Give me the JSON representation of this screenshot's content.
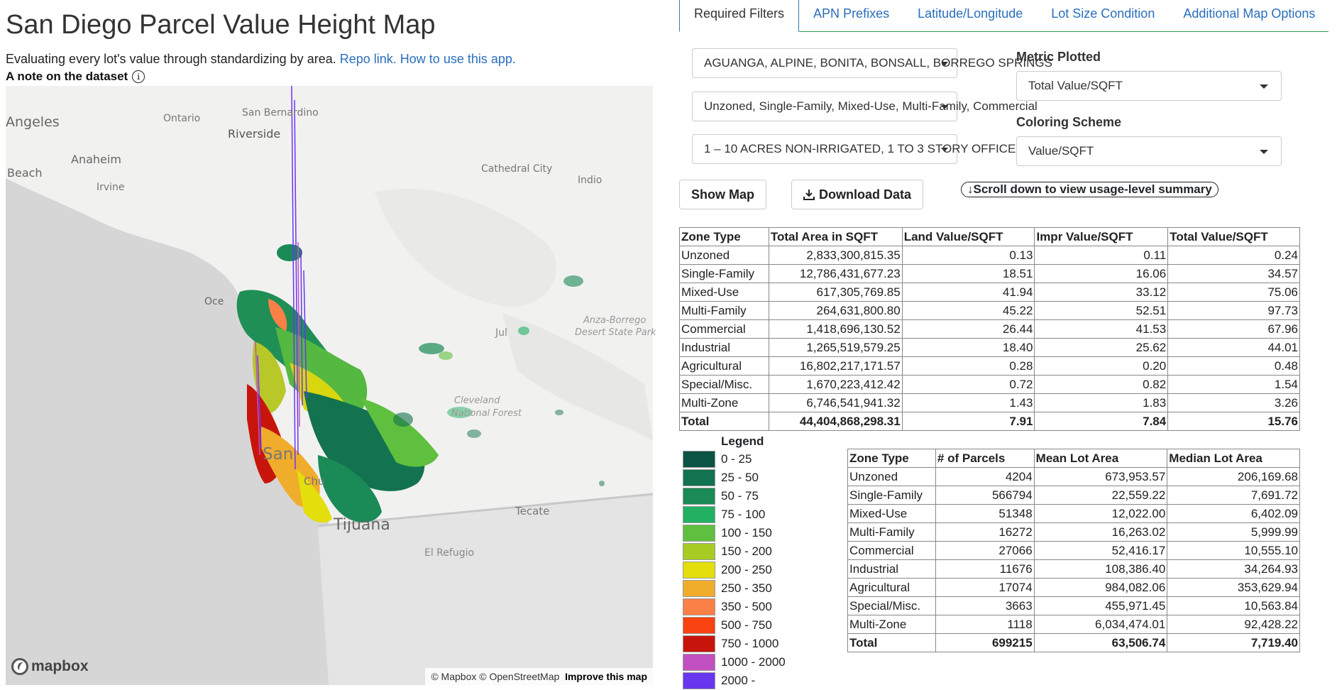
{
  "header": {
    "title": "San Diego Parcel Value Height Map",
    "subtitle_text": "Evaluating every lot's value through standardizing by area.",
    "repo_link": "Repo link.",
    "howto_link": "How to use this app.",
    "note_label": "A note on the dataset",
    "info_glyph": "i"
  },
  "map": {
    "labels": [
      {
        "text": "Angeles"
      },
      {
        "text": "Ontario"
      },
      {
        "text": "San Bernardino"
      },
      {
        "text": "Riverside"
      },
      {
        "text": "Anaheim"
      },
      {
        "text": "Beach"
      },
      {
        "text": "Irvine"
      },
      {
        "text": "Cathedral City"
      },
      {
        "text": "Indio"
      },
      {
        "text": "Oce"
      },
      {
        "text": "Jul"
      },
      {
        "text": "Anza-Borrego"
      },
      {
        "text": "Desert State Park"
      },
      {
        "text": "Cleveland"
      },
      {
        "text": "National Forest"
      },
      {
        "text": "San"
      },
      {
        "text": "Chu"
      },
      {
        "text": "Tijuana"
      },
      {
        "text": "Tecate"
      },
      {
        "text": "El Refugio"
      }
    ],
    "logo": "mapbox",
    "attribution_text": "© Mapbox © OpenStreetMap",
    "improve_link": "Improve this map"
  },
  "tabs": [
    {
      "label": "Required Filters",
      "active": true
    },
    {
      "label": "APN Prefixes",
      "active": false
    },
    {
      "label": "Latitude/Longitude",
      "active": false
    },
    {
      "label": "Lot Size Condition",
      "active": false
    },
    {
      "label": "Additional Map Options",
      "active": false
    }
  ],
  "filters": {
    "cities": "AGUANGA, ALPINE, BONITA, BONSALL, BORREGO SPRINGS",
    "zones": "Unzoned, Single-Family, Mixed-Use, Multi-Family, Commercial",
    "lot_types": "1 – 10 ACRES NON-IRRIGATED, 1 TO 3 STORY OFFICE"
  },
  "metric": {
    "label": "Metric Plotted",
    "value": "Total Value/SQFT"
  },
  "coloring": {
    "label": "Coloring Scheme",
    "value": "Value/SQFT"
  },
  "buttons": {
    "show_map": "Show Map",
    "download": "Download Data",
    "scroll_hint": "↓Scroll down to view usage-level summary"
  },
  "value_table": {
    "headers": [
      "Zone Type",
      "Total Area in SQFT",
      "Land Value/SQFT",
      "Impr Value/SQFT",
      "Total Value/SQFT"
    ],
    "rows": [
      [
        "Unzoned",
        "2,833,300,815.35",
        "0.13",
        "0.11",
        "0.24"
      ],
      [
        "Single-Family",
        "12,786,431,677.23",
        "18.51",
        "16.06",
        "34.57"
      ],
      [
        "Mixed-Use",
        "617,305,769.85",
        "41.94",
        "33.12",
        "75.06"
      ],
      [
        "Multi-Family",
        "264,631,800.80",
        "45.22",
        "52.51",
        "97.73"
      ],
      [
        "Commercial",
        "1,418,696,130.52",
        "26.44",
        "41.53",
        "67.96"
      ],
      [
        "Industrial",
        "1,265,519,579.25",
        "18.40",
        "25.62",
        "44.01"
      ],
      [
        "Agricultural",
        "16,802,217,171.57",
        "0.28",
        "0.20",
        "0.48"
      ],
      [
        "Special/Misc.",
        "1,670,223,412.42",
        "0.72",
        "0.82",
        "1.54"
      ],
      [
        "Multi-Zone",
        "6,746,541,941.32",
        "1.43",
        "1.83",
        "3.26"
      ],
      [
        "Total",
        "44,404,868,298.31",
        "7.91",
        "7.84",
        "15.76"
      ]
    ]
  },
  "count_table": {
    "headers": [
      "Zone Type",
      "# of Parcels",
      "Mean Lot Area",
      "Median Lot Area"
    ],
    "rows": [
      [
        "Unzoned",
        "4204",
        "673,953.57",
        "206,169.68"
      ],
      [
        "Single-Family",
        "566794",
        "22,559.22",
        "7,691.72"
      ],
      [
        "Mixed-Use",
        "51348",
        "12,022.00",
        "6,402.09"
      ],
      [
        "Multi-Family",
        "16272",
        "16,263.02",
        "5,999.99"
      ],
      [
        "Commercial",
        "27066",
        "52,416.17",
        "10,555.10"
      ],
      [
        "Industrial",
        "11676",
        "108,386.40",
        "34,264.93"
      ],
      [
        "Agricultural",
        "17074",
        "984,082.06",
        "353,629.94"
      ],
      [
        "Special/Misc.",
        "3663",
        "455,971.45",
        "10,563.84"
      ],
      [
        "Multi-Zone",
        "1118",
        "6,034,474.01",
        "92,428.22"
      ],
      [
        "Total",
        "699215",
        "63,506.74",
        "7,719.40"
      ]
    ]
  },
  "legend": {
    "title": "Legend",
    "items": [
      {
        "label": "0 - 25",
        "color": "#0b5345"
      },
      {
        "label": "25 - 50",
        "color": "#13724f"
      },
      {
        "label": "50 - 75",
        "color": "#1a8a57"
      },
      {
        "label": "75 - 100",
        "color": "#22b163"
      },
      {
        "label": "100 - 150",
        "color": "#5fbf3f"
      },
      {
        "label": "150 - 200",
        "color": "#a9cc24"
      },
      {
        "label": "200 - 250",
        "color": "#e3de0c"
      },
      {
        "label": "250 - 350",
        "color": "#f0ad2c"
      },
      {
        "label": "350 - 500",
        "color": "#fb8048"
      },
      {
        "label": "500 - 750",
        "color": "#f8420f"
      },
      {
        "label": "750 - 1000",
        "color": "#c8150c"
      },
      {
        "label": "1000 - 2000",
        "color": "#c24fbf"
      },
      {
        "label": "2000 -",
        "color": "#6936f0"
      }
    ]
  }
}
